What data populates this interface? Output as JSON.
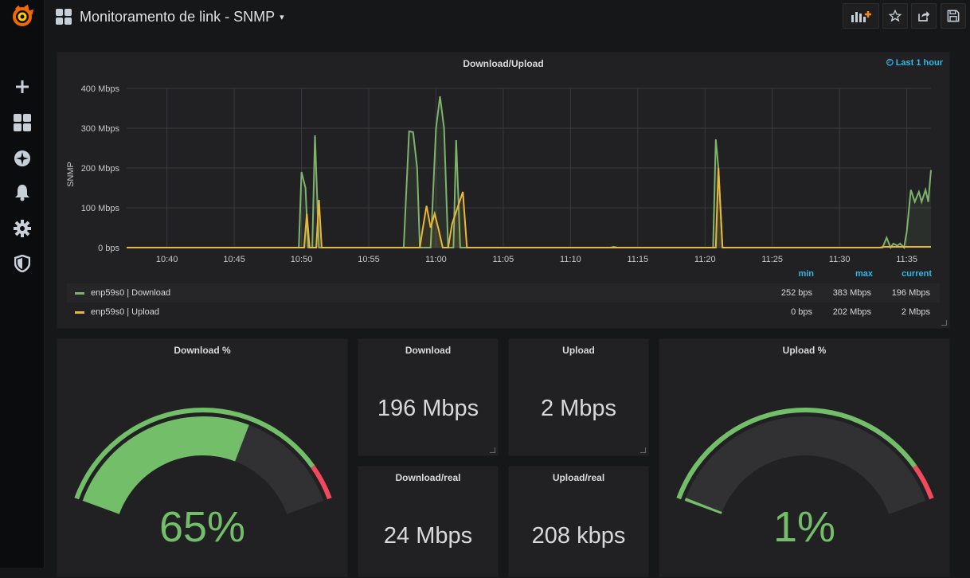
{
  "topbar": {
    "title": "Monitoramento de link - SNMP",
    "caret": "▾"
  },
  "sidebar": {
    "items": [
      "grafana-logo",
      "add-icon",
      "dashboards-icon",
      "explore-icon",
      "alerting-icon",
      "configuration-icon",
      "server-admin-icon"
    ]
  },
  "graph_panel": {
    "title": "Download/Upload",
    "time_info": "Last 1 hour",
    "legend_headers": {
      "min": "min",
      "max": "max",
      "current": "current"
    },
    "legend": [
      {
        "name": "enp59s0 | Download",
        "min": "252 bps",
        "max": "383 Mbps",
        "current": "196 Mbps",
        "color": "#7eb26d"
      },
      {
        "name": "enp59s0 | Upload",
        "min": "0 bps",
        "max": "202 Mbps",
        "current": "2 Mbps",
        "color": "#eab839"
      }
    ]
  },
  "chart_data": {
    "type": "line",
    "ylabel": "SNMP",
    "xlabel": "",
    "ylim": [
      0,
      400
    ],
    "y_ticks": [
      "0 bps",
      "100 Mbps",
      "200 Mbps",
      "300 Mbps",
      "400 Mbps"
    ],
    "x_ticks": [
      "10:40",
      "10:45",
      "10:50",
      "10:55",
      "11:00",
      "11:05",
      "11:10",
      "11:15",
      "11:20",
      "11:25",
      "11:30",
      "11:35"
    ],
    "x_range_minutes": [
      37,
      96.8
    ],
    "grid": true,
    "series": [
      {
        "name": "enp59s0 | Download",
        "color": "#7eb26d",
        "points": [
          [
            37,
            0
          ],
          [
            49.8,
            0
          ],
          [
            50.0,
            190
          ],
          [
            50.3,
            150
          ],
          [
            50.5,
            0
          ],
          [
            50.8,
            0
          ],
          [
            51.0,
            282
          ],
          [
            51.3,
            0
          ],
          [
            56.8,
            0
          ],
          [
            57.2,
            0
          ],
          [
            57.6,
            0
          ],
          [
            58.0,
            292
          ],
          [
            58.3,
            290
          ],
          [
            58.6,
            200
          ],
          [
            58.8,
            0
          ],
          [
            59.6,
            0
          ],
          [
            60.0,
            300
          ],
          [
            60.3,
            380
          ],
          [
            60.6,
            300
          ],
          [
            60.9,
            0
          ],
          [
            61.3,
            0
          ],
          [
            61.5,
            270
          ],
          [
            61.8,
            0
          ],
          [
            73.0,
            0
          ],
          [
            73.2,
            2
          ],
          [
            73.5,
            0
          ],
          [
            80.6,
            0
          ],
          [
            80.8,
            272
          ],
          [
            81.0,
            200
          ],
          [
            81.3,
            0
          ],
          [
            93.2,
            0
          ],
          [
            93.5,
            25
          ],
          [
            93.8,
            0
          ],
          [
            94.0,
            10
          ],
          [
            94.3,
            5
          ],
          [
            94.5,
            10
          ],
          [
            94.8,
            0
          ],
          [
            95.0,
            40
          ],
          [
            95.3,
            145
          ],
          [
            95.6,
            115
          ],
          [
            95.9,
            140
          ],
          [
            96.1,
            115
          ],
          [
            96.4,
            145
          ],
          [
            96.6,
            115
          ],
          [
            96.8,
            195
          ]
        ]
      },
      {
        "name": "enp59s0 | Upload",
        "color": "#eab839",
        "points": [
          [
            37,
            0
          ],
          [
            50.2,
            0
          ],
          [
            50.4,
            85
          ],
          [
            50.6,
            0
          ],
          [
            51.1,
            0
          ],
          [
            51.3,
            120
          ],
          [
            51.5,
            0
          ],
          [
            58.8,
            0
          ],
          [
            59.0,
            45
          ],
          [
            59.3,
            105
          ],
          [
            59.6,
            50
          ],
          [
            59.9,
            85
          ],
          [
            60.2,
            45
          ],
          [
            60.5,
            0
          ],
          [
            60.9,
            0
          ],
          [
            61.2,
            60
          ],
          [
            61.6,
            100
          ],
          [
            62.0,
            140
          ],
          [
            62.3,
            0
          ],
          [
            80.8,
            0
          ],
          [
            81.0,
            200
          ],
          [
            81.3,
            0
          ],
          [
            93.0,
            0
          ],
          [
            93.3,
            2
          ],
          [
            95.0,
            2
          ],
          [
            96.8,
            2
          ]
        ]
      }
    ]
  },
  "stats": {
    "download": {
      "title": "Download",
      "value": "196 Mbps"
    },
    "upload": {
      "title": "Upload",
      "value": "2 Mbps"
    },
    "download_real": {
      "title": "Download/real",
      "value": "24 Mbps"
    },
    "upload_real": {
      "title": "Upload/real",
      "value": "208 kbps"
    }
  },
  "gauges": {
    "download_pct": {
      "title": "Download %",
      "value_text": "65%",
      "value": 65,
      "color": "#73bf69"
    },
    "upload_pct": {
      "title": "Upload %",
      "value_text": "1%",
      "value": 1,
      "color": "#73bf69"
    },
    "thresholds": {
      "green": "#73bf69",
      "red": "#f2495c",
      "red_from_fraction": 0.89
    }
  }
}
